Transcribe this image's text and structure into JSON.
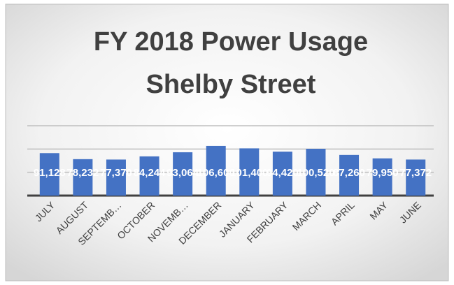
{
  "chart_data": {
    "type": "bar",
    "title": "FY 2018 Power Usage",
    "subtitle": "Shelby Street",
    "categories": [
      "JULY",
      "AUGUST",
      "SEPTEMB…",
      "OCTOBER",
      "NOVEMB…",
      "DECEMBER",
      "JANUARY",
      "FEBRUARY",
      "MARCH",
      "APRIL",
      "MAY",
      "JUNE"
    ],
    "values": [
      91128,
      78232,
      77370,
      84244,
      93064,
      106600,
      101400,
      94420,
      100520,
      87260,
      79950,
      77372
    ],
    "value_labels": [
      "91,128",
      "78,232",
      "77,370",
      "84,244",
      "93,064",
      "106,600",
      "101,400",
      "94,420",
      "100,520",
      "87,260",
      "79,950",
      "77,372"
    ],
    "color": "#4472c4",
    "ylim": [
      0,
      150000
    ],
    "yticks": [
      0,
      50000,
      100000,
      150000
    ],
    "grid": true
  }
}
